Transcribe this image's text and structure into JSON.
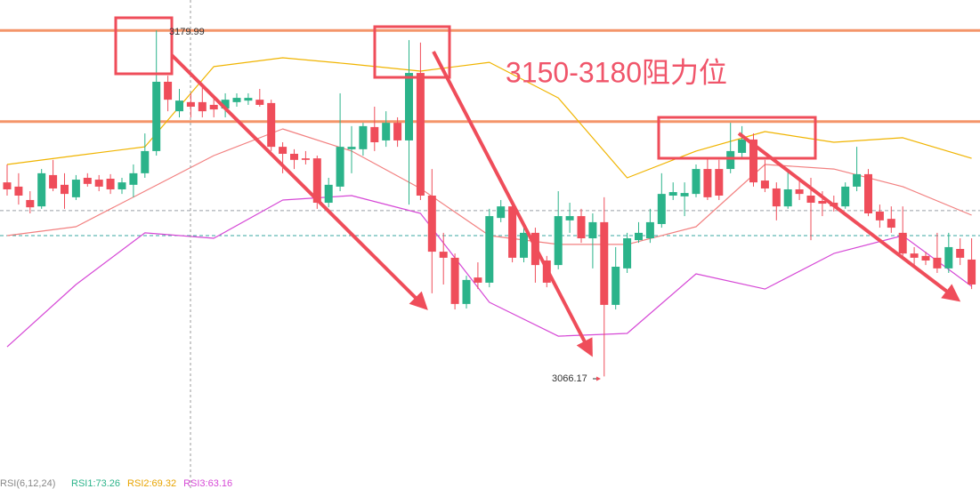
{
  "chart_data": {
    "type": "candlestick",
    "ylim": [
      3030,
      3190
    ],
    "up_color": "#2bb38a",
    "down_color": "#ef4d5a",
    "open": [
      3130.0,
      3128.6,
      3124.2,
      3122.1,
      3132.4,
      3129.2,
      3125.1,
      3131.5,
      3130.9,
      3131.2,
      3127.7,
      3129.2,
      3133.0,
      3140.3,
      3163.1,
      3153.4,
      3156.4,
      3156.4,
      3155.5,
      3154.3,
      3156.4,
      3156.9,
      3157.2,
      3156.1,
      3141.7,
      3139.4,
      3137.9,
      3137.9,
      3123.3,
      3128.6,
      3140.9,
      3140.9,
      3148.2,
      3143.8,
      3149.6,
      3143.8,
      3166.0,
      3125.65,
      3107.2,
      3105.2,
      3090.0,
      3098.7,
      3097.0,
      3118.3,
      3122.1,
      3105.2,
      3113.4,
      3104.3,
      3102.8,
      3117.5,
      3118.9,
      3111.6,
      3116.9,
      3089.7,
      3101.7,
      3111.0,
      3111.6,
      3116.3,
      3125.65,
      3125.4,
      3126.2,
      3134.4,
      3134.4,
      3134.4,
      3139.7,
      3144.1,
      3130.6,
      3128.0,
      3122.1,
      3127.7,
      3125.65,
      3123.9,
      3123.3,
      3122.1,
      3128.6,
      3132.7,
      3120.4,
      3118.0,
      3113.4,
      3106.6,
      3105.8,
      3105.2,
      3101.7,
      3108.1,
      3104.6
    ],
    "high": [
      3135.9,
      3133.0,
      3127.1,
      3134.4,
      3137.4,
      3133.0,
      3132.4,
      3133.0,
      3132.4,
      3132.7,
      3131.5,
      3135.9,
      3146.1,
      3179.99,
      3165.1,
      3160.75,
      3159.3,
      3162.2,
      3157.8,
      3159.3,
      3159.3,
      3159.3,
      3160.75,
      3157.2,
      3143.2,
      3140.9,
      3140.3,
      3138.8,
      3131.5,
      3159.3,
      3148.5,
      3149.6,
      3154.9,
      3153.4,
      3151.4,
      3176.8,
      3176.0,
      3134.4,
      3113.4,
      3106.6,
      3099.3,
      3103.7,
      3121.3,
      3124.2,
      3123.3,
      3116.9,
      3115.1,
      3105.8,
      3127.1,
      3123.3,
      3121.3,
      3119.8,
      3125.1,
      3108.7,
      3113.4,
      3116.9,
      3121.3,
      3133.0,
      3130.0,
      3130.0,
      3135.9,
      3137.9,
      3137.4,
      3149.6,
      3148.5,
      3146.1,
      3137.4,
      3130.0,
      3134.4,
      3131.5,
      3131.5,
      3127.1,
      3125.65,
      3130.0,
      3141.7,
      3134.4,
      3122.7,
      3122.1,
      3122.1,
      3108.7,
      3107.2,
      3113.4,
      3113.4,
      3111.6,
      3111.6
    ],
    "low": [
      3125.65,
      3122.7,
      3119.8,
      3121.3,
      3127.1,
      3121.3,
      3124.2,
      3128.6,
      3127.1,
      3126.2,
      3126.2,
      3125.1,
      3131.5,
      3138.8,
      3153.4,
      3151.4,
      3151.4,
      3151.4,
      3151.4,
      3151.4,
      3154.9,
      3155.5,
      3154.9,
      3140.3,
      3133.0,
      3134.4,
      3135.9,
      3121.3,
      3121.8,
      3127.1,
      3133.0,
      3138.8,
      3140.3,
      3141.7,
      3141.7,
      3122.7,
      3124.2,
      3093.5,
      3096.4,
      3088.2,
      3088.5,
      3094.9,
      3095.5,
      3116.9,
      3103.7,
      3103.7,
      3097.0,
      3095.5,
      3101.4,
      3113.4,
      3110.1,
      3101.7,
      3066.17,
      3088.2,
      3100.2,
      3110.1,
      3110.1,
      3115.1,
      3124.2,
      3118.9,
      3125.1,
      3124.2,
      3124.2,
      3133.0,
      3137.9,
      3128.6,
      3126.8,
      3117.5,
      3121.3,
      3124.2,
      3111.0,
      3118.9,
      3120.4,
      3121.3,
      3127.1,
      3118.9,
      3115.1,
      3113.4,
      3105.2,
      3102.8,
      3102.8,
      3100.2,
      3100.2,
      3102.8,
      3094.9
    ],
    "close": [
      3127.7,
      3125.65,
      3121.8,
      3133.0,
      3128.0,
      3126.2,
      3130.9,
      3129.5,
      3128.6,
      3127.7,
      3130.0,
      3133.0,
      3140.3,
      3163.1,
      3157.2,
      3156.9,
      3154.9,
      3153.4,
      3154.0,
      3157.2,
      3157.8,
      3157.8,
      3155.5,
      3141.7,
      3139.4,
      3137.4,
      3137.4,
      3123.3,
      3129.2,
      3141.7,
      3141.7,
      3148.5,
      3143.2,
      3149.6,
      3143.8,
      3166.0,
      3125.65,
      3107.2,
      3105.2,
      3090.0,
      3097.9,
      3097.0,
      3118.9,
      3122.1,
      3105.2,
      3113.4,
      3102.8,
      3097.0,
      3118.9,
      3118.9,
      3111.6,
      3116.9,
      3089.7,
      3102.25,
      3111.6,
      3113.4,
      3116.9,
      3126.2,
      3126.8,
      3126.5,
      3134.4,
      3125.1,
      3125.65,
      3140.3,
      3144.1,
      3130.0,
      3128.0,
      3122.1,
      3127.7,
      3126.2,
      3123.3,
      3123.0,
      3122.1,
      3128.6,
      3132.7,
      3119.8,
      3117.5,
      3115.1,
      3106.6,
      3105.2,
      3104.3,
      3101.7,
      3108.7,
      3105.2,
      3096.4
    ],
    "line_x": [
      0,
      6,
      12,
      18,
      24,
      30,
      36,
      42,
      48,
      54,
      60,
      66,
      72,
      78,
      84
    ],
    "lines": [
      {
        "color": "#f0b400",
        "values": [
          3135.9,
          3138.8,
          3141.7,
          3168.1,
          3171.0,
          3168.9,
          3166.6,
          3169.5,
          3157.8,
          3131.5,
          3140.3,
          3146.7,
          3143.2,
          3144.7,
          3137.9
        ]
      },
      {
        "color": "#f28080",
        "values": [
          3112.5,
          3115.4,
          3127.1,
          3138.8,
          3147.6,
          3140.3,
          3128.0,
          3112.5,
          3109.6,
          3109.6,
          3115.4,
          3135.9,
          3134.4,
          3128.6,
          3119.2
        ]
      },
      {
        "color": "#d649d6",
        "values": [
          3075.9,
          3096.4,
          3113.4,
          3111.6,
          3124.2,
          3125.65,
          3119.8,
          3090.55,
          3079.4,
          3080.3,
          3099.9,
          3094.9,
          3106.6,
          3112.5,
          3095.8
        ]
      }
    ],
    "levels": [
      3180,
      3150
    ],
    "level_color": "#f4956a",
    "price_lines": [
      {
        "value": 3120.7,
        "color": "#9aa0a6"
      },
      {
        "value": 3112.5,
        "color": "#3aa7a0"
      }
    ],
    "annotation": "3150-3180阻力位",
    "annotation_color": "#f0556a",
    "rsi_title": "RSI(6,12,24)",
    "rsi_labels": [
      {
        "text": "RSI1:73.26",
        "color": "#2bb38a"
      },
      {
        "text": "RSI2:69.32",
        "color": "#e8a400"
      },
      {
        "text": "RSI3:63.16",
        "color": "#d649d6"
      }
    ]
  }
}
